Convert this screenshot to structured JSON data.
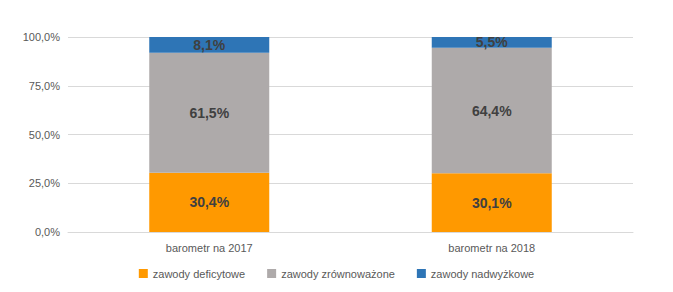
{
  "chart_data": {
    "type": "bar",
    "categories": [
      "barometr na 2017",
      "barometr na 2018"
    ],
    "series": [
      {
        "name": "zawody deficytowe",
        "color": "#FF9900",
        "values": [
          30.4,
          30.1
        ],
        "value_labels": [
          "30,4%",
          "30,1%"
        ]
      },
      {
        "name": "zawody zrównoważone",
        "color": "#AEAAAA",
        "values": [
          61.5,
          64.4
        ],
        "value_labels": [
          "61,5%",
          "64,4%"
        ]
      },
      {
        "name": "zawody nadwyżkowe",
        "color": "#2E75B6",
        "values": [
          8.1,
          5.5
        ],
        "value_labels": [
          "8,1%",
          "5,5%"
        ]
      }
    ],
    "ylim": [
      0,
      100
    ],
    "yticks": [
      {
        "value": 0,
        "label": "0,0%"
      },
      {
        "value": 25,
        "label": "25,0%"
      },
      {
        "value": 50,
        "label": "50,0%"
      },
      {
        "value": 75,
        "label": "75,0%"
      },
      {
        "value": 100,
        "label": "100,0%"
      }
    ],
    "grid": true,
    "stacked": true,
    "data_labels": true,
    "legend": "bottom"
  }
}
